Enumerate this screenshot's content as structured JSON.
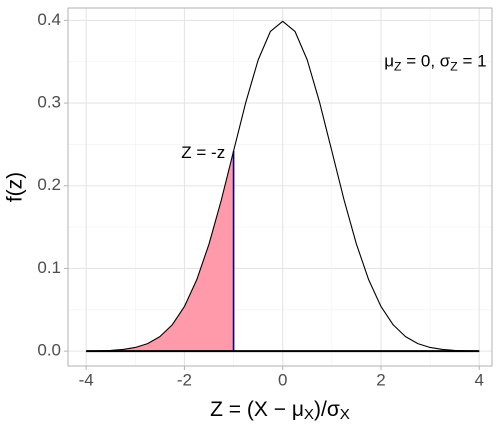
{
  "chart_data": {
    "type": "line",
    "x_label": [
      "Z = (X − μ",
      {
        "sub": "X"
      },
      ")/σ",
      {
        "sub": "X"
      }
    ],
    "y_label": "f(z)",
    "series": [
      {
        "color": "#000000",
        "x": [
          -4,
          -3.75,
          -3.5,
          -3.25,
          -3,
          -2.75,
          -2.5,
          -2.25,
          -2,
          -1.75,
          -1.5,
          -1.25,
          -1,
          -0.75,
          -0.5,
          -0.25,
          0,
          0.25,
          0.5,
          0.75,
          1,
          1.25,
          1.5,
          1.75,
          2,
          2.25,
          2.5,
          2.75,
          3,
          3.25,
          3.5,
          3.75,
          4
        ],
        "values": [
          0.0001,
          0.0004,
          0.0009,
          0.002,
          0.0044,
          0.0091,
          0.0175,
          0.0317,
          0.054,
          0.0863,
          0.1295,
          0.1826,
          0.242,
          0.3011,
          0.3521,
          0.3867,
          0.3989,
          0.3867,
          0.3521,
          0.3011,
          0.242,
          0.1826,
          0.1295,
          0.0863,
          0.054,
          0.0317,
          0.0175,
          0.0091,
          0.0044,
          0.002,
          0.0009,
          0.0004,
          0.0001
        ]
      }
    ],
    "area": {
      "color": "#ff9aaa",
      "edge_color": "#000080",
      "x": [
        -4,
        -3.75,
        -3.5,
        -3.25,
        -3,
        -2.75,
        -2.5,
        -2.25,
        -2,
        -1.75,
        -1.5,
        -1.25,
        -1
      ],
      "values": [
        0.0001,
        0.0004,
        0.0009,
        0.002,
        0.0044,
        0.0091,
        0.0175,
        0.0317,
        0.054,
        0.0863,
        0.1295,
        0.1826,
        0.242
      ]
    },
    "annotations": [
      {
        "x": -1.17,
        "y": 0.239,
        "text": "Z = -z"
      },
      {
        "x": 4.15,
        "y": 0.349,
        "text": [
          "μ",
          {
            "sub": "Z"
          },
          " = 0, σ",
          {
            "sub": "Z"
          },
          " = 1"
        ]
      }
    ],
    "xlim": [
      -4.37,
      4.26
    ],
    "ylim": [
      -0.018,
      0.415
    ],
    "xticks": [
      -4,
      -2,
      0,
      2,
      4
    ],
    "yticks": [
      {
        "value": 0,
        "label": "0.0"
      },
      {
        "value": 0.1,
        "label": "0.1"
      },
      {
        "value": 0.2,
        "label": "0.2"
      },
      {
        "value": 0.3,
        "label": "0.3"
      },
      {
        "value": 0.4,
        "label": "0.4"
      }
    ],
    "grid": true
  }
}
